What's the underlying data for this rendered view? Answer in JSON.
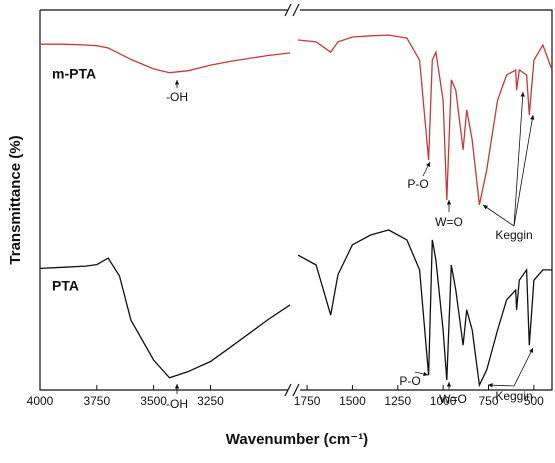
{
  "chart_data": [
    {
      "type": "line",
      "xlabel": "Wavenumber (cm⁻¹)",
      "ylabel": "Transmittance (%)",
      "xlim": [
        4000,
        2900
      ],
      "xticks": [
        4000,
        3750,
        3500,
        3250
      ],
      "ylim": [
        0,
        100
      ],
      "x": [
        4000,
        3900,
        3800,
        3750,
        3700,
        3650,
        3600,
        3500,
        3430,
        3350,
        3250,
        3150,
        3000,
        2900
      ],
      "series": [
        {
          "name": "m-PTA",
          "color": "#c23b3d",
          "values": [
            91,
            91,
            90.8,
            90.6,
            90,
            88.5,
            87,
            84.5,
            83.5,
            84,
            85.5,
            86.6,
            88,
            88.7
          ]
        },
        {
          "name": "PTA",
          "color": "#111111",
          "values": [
            32,
            32.3,
            32.6,
            33,
            34.7,
            30,
            18.4,
            7.9,
            3.2,
            4.8,
            7.5,
            11.8,
            18.4,
            22.4
          ]
        }
      ],
      "annotations": [
        "-OH",
        "-OH"
      ]
    },
    {
      "type": "line",
      "xlim": [
        1800,
        400
      ],
      "xticks": [
        1750,
        1500,
        1250,
        1000,
        750,
        500
      ],
      "ylim": [
        0,
        100
      ],
      "x": [
        1800,
        1700,
        1620,
        1580,
        1500,
        1400,
        1300,
        1200,
        1130,
        1080,
        1060,
        1040,
        1000,
        980,
        955,
        930,
        890,
        870,
        840,
        800,
        760,
        700,
        650,
        600,
        595,
        580,
        540,
        525,
        500,
        450,
        400
      ],
      "series": [
        {
          "color": "#c23b3d",
          "values": [
            92.1,
            91.6,
            88.9,
            91.6,
            92.9,
            93.2,
            93.4,
            92.6,
            86.8,
            60.5,
            86.8,
            88.9,
            76.3,
            50,
            81.6,
            78.9,
            63.2,
            73.7,
            65.8,
            48.7,
            57.9,
            76.3,
            82.9,
            84.2,
            78.9,
            84.2,
            82.9,
            72.4,
            86.8,
            90.8,
            84.2
          ]
        },
        {
          "color": "#111111",
          "values": [
            35.5,
            32.9,
            19.7,
            30.3,
            38.2,
            40.8,
            42.1,
            39.5,
            31.6,
            3.9,
            39.5,
            34.2,
            15.8,
            2.6,
            32.9,
            26.3,
            11.8,
            21.1,
            15.8,
            1.3,
            5.3,
            15.8,
            23.7,
            26.3,
            21.1,
            28.9,
            31.6,
            11.8,
            28.9,
            31.6,
            31.6
          ]
        }
      ],
      "annotations": [
        "P-O",
        "W=O",
        "Keggin",
        "P-O",
        "W=O",
        "Keggin"
      ]
    }
  ]
}
